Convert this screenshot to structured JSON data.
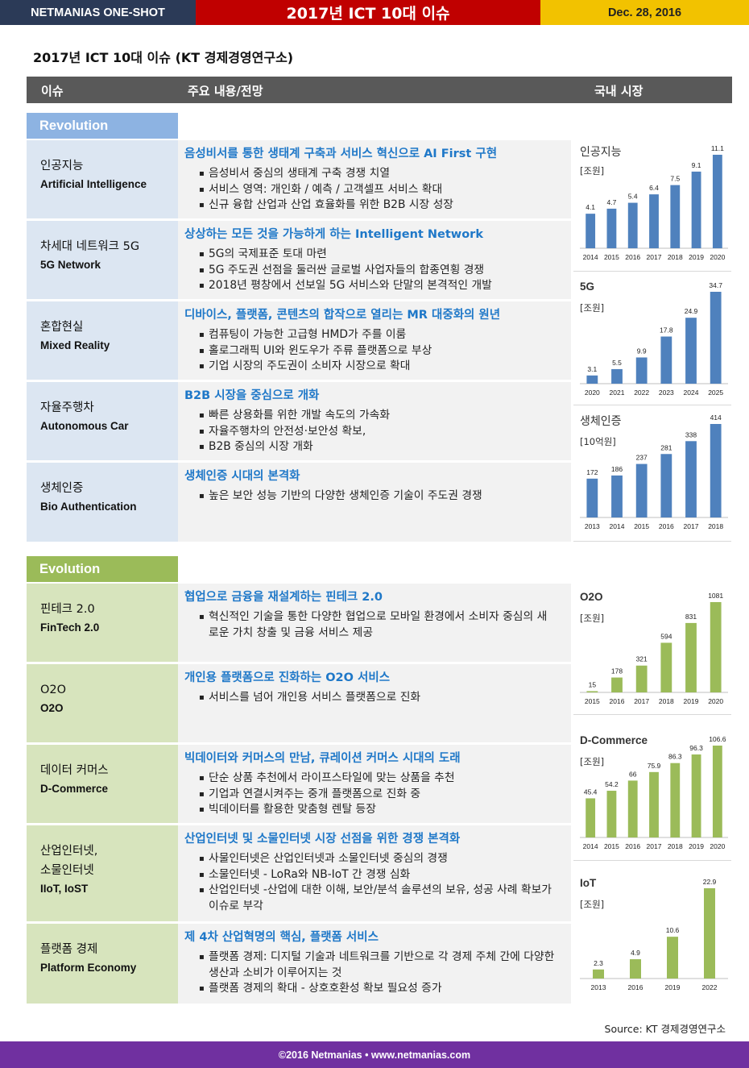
{
  "header": {
    "brand": "NETMANIAS ONE-SHOT",
    "title": "2017년 ICT 10대 이슈",
    "date": "Dec. 28, 2016"
  },
  "doc_title": "2017년 ICT 10대 이슈 (KT 경제경영연구소)",
  "columns": {
    "issue": "이슈",
    "content": "주요 내용/전망",
    "market": "국내 시장"
  },
  "colors": {
    "top_left": "#2b3a57",
    "top_mid": "#c00000",
    "top_right": "#f2c200",
    "revolution": "#8db3e2",
    "evolution": "#9bbb59",
    "headline": "#1f78c8",
    "bar_blue": "#4f81bd",
    "bar_green": "#9bbb59",
    "footer": "#7030a0"
  },
  "revolution": {
    "label": "Revolution",
    "rows": [
      {
        "ko": "인공지능",
        "en": "Artificial Intelligence",
        "head": "음성비서를 통한 생태계 구축과 서비스 혁신으로 AI First 구현",
        "bullets": [
          "음성비서 중심의 생태계 구축 경쟁 치열",
          "서비스 영역: 개인화 / 예측 / 고객셀프 서비스 확대",
          "신규 융합 산업과 산업 효율화를 위한 B2B 시장 성장"
        ]
      },
      {
        "ko": "차세대 네트워크 5G",
        "en": "5G Network",
        "head": "상상하는 모든 것을 가능하게 하는 Intelligent Network",
        "bullets": [
          "5G의 국제표준 토대 마련",
          "5G 주도권 선점을 둘러싼 글로벌 사업자들의 합종연횡 경쟁",
          "2018년 평창에서 선보일 5G 서비스와 단말의 본격적인 개발"
        ]
      },
      {
        "ko": "혼합현실",
        "en": "Mixed Reality",
        "head": "디바이스, 플랫폼, 콘텐츠의 합작으로 열리는 MR 대중화의 원년",
        "bullets": [
          "컴퓨팅이 가능한 고급형 HMD가 주를 이룸",
          "홀로그래픽 UI와 윈도우가 주류 플랫폼으로 부상",
          "기업 시장의 주도권이 소비자 시장으로 확대"
        ]
      },
      {
        "ko": "자율주행차",
        "en": "Autonomous Car",
        "head": "B2B 시장을 중심으로 개화",
        "bullets": [
          "빠른 상용화를 위한 개발 속도의 가속화",
          "자율주행차의 안전성·보안성 확보,",
          "B2B 중심의 시장 개화"
        ]
      },
      {
        "ko": "생체인증",
        "en": "Bio Authentication",
        "head": "생체인증 시대의 본격화",
        "bullets": [
          "높은 보안 성능 기반의 다양한 생체인증 기술이 주도권 경쟁"
        ]
      }
    ]
  },
  "evolution": {
    "label": "Evolution",
    "rows": [
      {
        "ko": "핀테크 2.0",
        "en": "FinTech 2.0",
        "head": "협업으로 금융을 재설계하는 핀테크 2.0",
        "bullets": [
          "혁신적인 기술을 통한 다양한 협업으로 모바일 환경에서 소비자 중심의 새로운 가치 창출 및 금융 서비스 제공"
        ]
      },
      {
        "ko": "O2O",
        "en": "O2O",
        "head": "개인용 플랫폼으로 진화하는 O2O 서비스",
        "bullets": [
          "서비스를 넘어 개인용 서비스 플랫폼으로 진화"
        ]
      },
      {
        "ko": "데이터 커머스",
        "en": "D-Commerce",
        "head": "빅데이터와 커머스의 만남, 큐레이션 커머스 시대의 도래",
        "bullets": [
          "단순 상품 추천에서 라이프스타일에 맞는 상품을 추천",
          "기업과 연결시켜주는 중개 플랫폼으로 진화 중",
          "빅데이터를 활용한 맞춤형 렌탈 등장"
        ]
      },
      {
        "ko": "산업인터넷,",
        "ko2": "소물인터넷",
        "en": "IIoT, IoST",
        "head": "산업인터넷 및 소물인터넷 시장 선점을 위한 경쟁 본격화",
        "bullets": [
          "사물인터넷은 산업인터넷과 소물인터넷 중심의 경쟁",
          "소물인터넷 - LoRa와 NB-IoT 간 경쟁 심화",
          "산업인터넷 -산업에 대한 이해, 보안/분석 솔루션의 보유, 성공 사례 확보가 이슈로 부각"
        ]
      },
      {
        "ko": "플랫폼 경제",
        "en": "Platform Economy",
        "head": "제 4차 산업혁명의 핵심, 플랫폼 서비스",
        "bullets": [
          "플랫폼 경제: 디지털 기술과 네트워크를 기반으로 각 경제 주체 간에 다양한 생산과 소비가 이루어지는 것",
          "플랫폼 경제의 확대 - 상호호환성 확보 필요성 증가"
        ]
      }
    ]
  },
  "chart_data": [
    {
      "type": "bar",
      "title": "인공지능",
      "unit": "[조원]",
      "categories": [
        "2014",
        "2015",
        "2016",
        "2017",
        "2018",
        "2019",
        "2020"
      ],
      "values": [
        4.1,
        4.7,
        5.4,
        6.4,
        7.5,
        9.1,
        11.1
      ],
      "color": "#4f81bd"
    },
    {
      "type": "bar",
      "title": "5G",
      "unit": "[조원]",
      "categories": [
        "2020",
        "2021",
        "2022",
        "2023",
        "2024",
        "2025"
      ],
      "values": [
        3.1,
        5.5,
        9.9,
        17.8,
        24.9,
        34.7
      ],
      "color": "#4f81bd"
    },
    {
      "type": "bar",
      "title": "생체인증",
      "unit": "[10억원]",
      "categories": [
        "2013",
        "2014",
        "2015",
        "2016",
        "2017",
        "2018"
      ],
      "values": [
        172,
        186,
        237,
        281,
        338,
        414
      ],
      "color": "#4f81bd"
    },
    {
      "type": "bar",
      "title": "O2O",
      "unit": "[조원]",
      "categories": [
        "2015",
        "2016",
        "2017",
        "2018",
        "2019",
        "2020"
      ],
      "values": [
        15,
        178,
        321,
        594,
        831,
        1081
      ],
      "color": "#9bbb59"
    },
    {
      "type": "bar",
      "title": "D-Commerce",
      "unit": "[조원]",
      "categories": [
        "2014",
        "2015",
        "2016",
        "2017",
        "2018",
        "2019",
        "2020"
      ],
      "values": [
        45.4,
        54.2,
        66,
        75.9,
        86.3,
        96.3,
        106.6
      ],
      "color": "#9bbb59"
    },
    {
      "type": "bar",
      "title": "IoT",
      "unit": "[조원]",
      "categories": [
        "2013",
        "2016",
        "2019",
        "2022"
      ],
      "values": [
        2.3,
        4.9,
        10.6,
        22.9
      ],
      "color": "#9bbb59"
    }
  ],
  "source": "Source: KT 경제경영연구소",
  "footer": "©2016 Netmanias • www.netmanias.com"
}
